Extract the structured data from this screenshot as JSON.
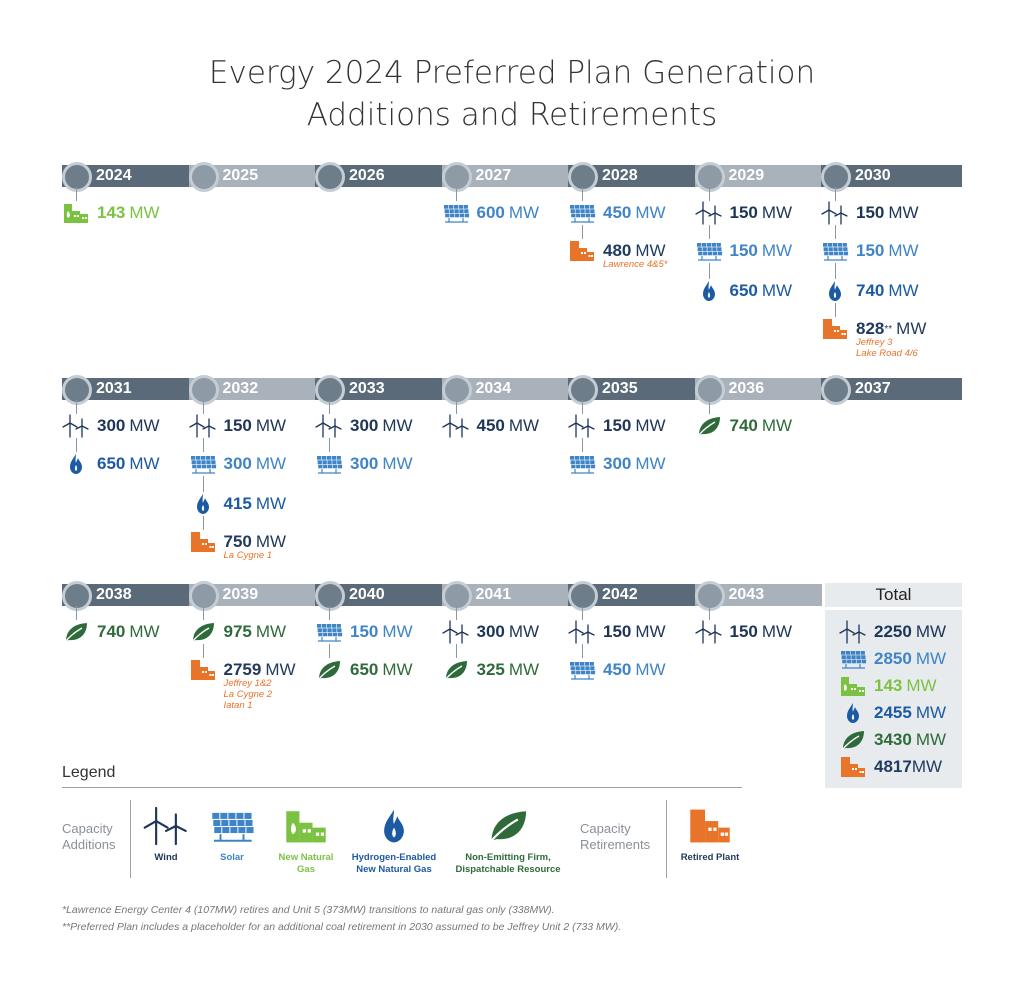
{
  "title": {
    "line1": "Evergy 2024 Preferred Plan Generation",
    "line2": "Additions and Retirements"
  },
  "colors": {
    "wind": "#1d3557",
    "solar": "#3f84c6",
    "gas": "#7cc242",
    "h2": "#1c5aa3",
    "nef": "#2f6b3a",
    "retired": "#e8742a"
  },
  "icons": {
    "wind": "wind-turbine-icon",
    "solar": "solar-panel-icon",
    "gas": "natural-gas-plant-icon",
    "h2": "hydrogen-flame-icon",
    "nef": "leaf-icon",
    "retired": "retired-plant-icon"
  },
  "unit": "MW",
  "chart_data": {
    "type": "timeline",
    "rows": [
      {
        "years": [
          {
            "year": "2024",
            "entries": [
              {
                "type": "gas",
                "value": "143"
              }
            ]
          },
          {
            "year": "2025",
            "entries": []
          },
          {
            "year": "2026",
            "entries": []
          },
          {
            "year": "2027",
            "entries": [
              {
                "type": "solar",
                "value": "600"
              }
            ]
          },
          {
            "year": "2028",
            "entries": [
              {
                "type": "solar",
                "value": "450"
              },
              {
                "type": "retired",
                "value": "480",
                "note": "Lawrence 4&5*"
              }
            ]
          },
          {
            "year": "2029",
            "entries": [
              {
                "type": "wind",
                "value": "150"
              },
              {
                "type": "solar",
                "value": "150"
              },
              {
                "type": "h2",
                "value": "650"
              }
            ]
          },
          {
            "year": "2030",
            "entries": [
              {
                "type": "wind",
                "value": "150"
              },
              {
                "type": "solar",
                "value": "150"
              },
              {
                "type": "h2",
                "value": "740"
              },
              {
                "type": "retired",
                "value": "828",
                "sup": "**",
                "note": "Jeffrey 3\nLake Road 4/6"
              }
            ]
          }
        ]
      },
      {
        "years": [
          {
            "year": "2031",
            "entries": [
              {
                "type": "wind",
                "value": "300"
              },
              {
                "type": "h2",
                "value": "650"
              }
            ]
          },
          {
            "year": "2032",
            "entries": [
              {
                "type": "wind",
                "value": "150"
              },
              {
                "type": "solar",
                "value": "300"
              },
              {
                "type": "h2",
                "value": "415"
              },
              {
                "type": "retired",
                "value": "750",
                "note": "La Cygne 1"
              }
            ]
          },
          {
            "year": "2033",
            "entries": [
              {
                "type": "wind",
                "value": "300"
              },
              {
                "type": "solar",
                "value": "300"
              }
            ]
          },
          {
            "year": "2034",
            "entries": [
              {
                "type": "wind",
                "value": "450"
              }
            ]
          },
          {
            "year": "2035",
            "entries": [
              {
                "type": "wind",
                "value": "150"
              },
              {
                "type": "solar",
                "value": "300"
              }
            ]
          },
          {
            "year": "2036",
            "entries": [
              {
                "type": "nef",
                "value": "740"
              }
            ]
          },
          {
            "year": "2037",
            "entries": []
          }
        ]
      },
      {
        "years": [
          {
            "year": "2038",
            "entries": [
              {
                "type": "nef",
                "value": "740"
              }
            ]
          },
          {
            "year": "2039",
            "entries": [
              {
                "type": "nef",
                "value": "975"
              },
              {
                "type": "retired",
                "value": "2759",
                "note": "Jeffrey 1&2\nLa Cygne 2\nIatan 1"
              }
            ]
          },
          {
            "year": "2040",
            "entries": [
              {
                "type": "solar",
                "value": "150"
              },
              {
                "type": "nef",
                "value": "650"
              }
            ]
          },
          {
            "year": "2041",
            "entries": [
              {
                "type": "wind",
                "value": "300"
              },
              {
                "type": "nef",
                "value": "325"
              }
            ]
          },
          {
            "year": "2042",
            "entries": [
              {
                "type": "wind",
                "value": "150"
              },
              {
                "type": "solar",
                "value": "450"
              }
            ]
          },
          {
            "year": "2043",
            "entries": [
              {
                "type": "wind",
                "value": "150"
              }
            ]
          }
        ]
      }
    ],
    "totals": {
      "label": "Total",
      "items": [
        {
          "type": "wind",
          "value": "2250",
          "unit": "MW"
        },
        {
          "type": "solar",
          "value": "2850",
          "unit": "MW"
        },
        {
          "type": "gas",
          "value": "143",
          "unit": "MW"
        },
        {
          "type": "h2",
          "value": "2455",
          "unit": "MW"
        },
        {
          "type": "nef",
          "value": "3430",
          "unit": "MW"
        },
        {
          "type": "retired",
          "value": "4817",
          "unit": "MW"
        }
      ]
    }
  },
  "legend": {
    "title": "Legend",
    "additions_label": "Capacity\nAdditions",
    "retirements_label": "Capacity\nRetirements",
    "items": [
      {
        "type": "wind",
        "label": "Wind"
      },
      {
        "type": "solar",
        "label": "Solar"
      },
      {
        "type": "gas",
        "label": "New Natural\nGas"
      },
      {
        "type": "h2",
        "label": "Hydrogen-Enabled\nNew Natural Gas"
      },
      {
        "type": "nef",
        "label": "Non-Emitting Firm,\nDispatchable Resource"
      }
    ],
    "retired": {
      "type": "retired",
      "label": "Retired Plant"
    }
  },
  "footnotes": [
    "*Lawrence Energy Center 4 (107MW) retires and Unit 5 (373MW) transitions to natural gas only (338MW).",
    "**Preferred Plan includes a placeholder for an additional coal retirement in 2030 assumed to be Jeffrey Unit 2 (733 MW)."
  ]
}
